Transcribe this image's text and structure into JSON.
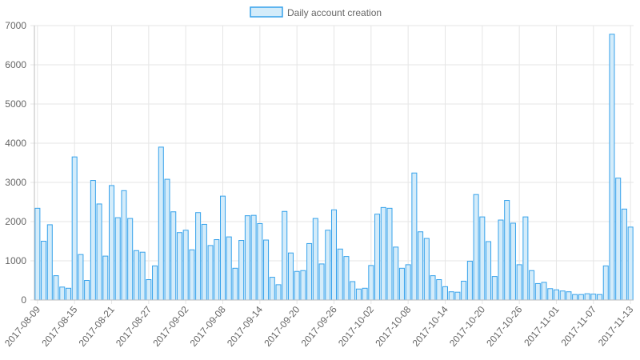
{
  "colors": {
    "bar_fill": "#d4ecfa",
    "bar_stroke": "#36a2eb",
    "grid": "#e5e5e5",
    "axis": "#bdbdbd",
    "text": "#666666"
  },
  "chart_data": {
    "type": "bar",
    "title": "",
    "xlabel": "",
    "ylabel": "",
    "ylim": [
      0,
      7000
    ],
    "yticks": [
      0,
      1000,
      2000,
      3000,
      4000,
      5000,
      6000,
      7000
    ],
    "grid": true,
    "legend": "top-center",
    "x_tick_labels": [
      "2017-08-09",
      "2017-08-15",
      "2017-08-21",
      "2017-08-27",
      "2017-09-02",
      "2017-09-08",
      "2017-09-14",
      "2017-09-20",
      "2017-09-26",
      "2017-10-02",
      "2017-10-08",
      "2017-10-14",
      "2017-10-20",
      "2017-10-26",
      "2017-11-01",
      "2017-11-07",
      "2017-11-13"
    ],
    "categories": [
      "2017-08-09",
      "2017-08-10",
      "2017-08-11",
      "2017-08-12",
      "2017-08-13",
      "2017-08-14",
      "2017-08-15",
      "2017-08-16",
      "2017-08-17",
      "2017-08-18",
      "2017-08-19",
      "2017-08-20",
      "2017-08-21",
      "2017-08-22",
      "2017-08-23",
      "2017-08-24",
      "2017-08-25",
      "2017-08-26",
      "2017-08-27",
      "2017-08-28",
      "2017-08-29",
      "2017-08-30",
      "2017-08-31",
      "2017-09-01",
      "2017-09-02",
      "2017-09-03",
      "2017-09-04",
      "2017-09-05",
      "2017-09-06",
      "2017-09-07",
      "2017-09-08",
      "2017-09-09",
      "2017-09-10",
      "2017-09-11",
      "2017-09-12",
      "2017-09-13",
      "2017-09-14",
      "2017-09-15",
      "2017-09-16",
      "2017-09-17",
      "2017-09-18",
      "2017-09-19",
      "2017-09-20",
      "2017-09-21",
      "2017-09-22",
      "2017-09-23",
      "2017-09-24",
      "2017-09-25",
      "2017-09-26",
      "2017-09-27",
      "2017-09-28",
      "2017-09-29",
      "2017-09-30",
      "2017-10-01",
      "2017-10-02",
      "2017-10-03",
      "2017-10-04",
      "2017-10-05",
      "2017-10-06",
      "2017-10-07",
      "2017-10-08",
      "2017-10-09",
      "2017-10-10",
      "2017-10-11",
      "2017-10-12",
      "2017-10-13",
      "2017-10-14",
      "2017-10-15",
      "2017-10-16",
      "2017-10-17",
      "2017-10-18",
      "2017-10-19",
      "2017-10-20",
      "2017-10-21",
      "2017-10-22",
      "2017-10-23",
      "2017-10-24",
      "2017-10-25",
      "2017-10-26",
      "2017-10-27",
      "2017-10-28",
      "2017-10-29",
      "2017-10-30",
      "2017-10-31",
      "2017-11-01",
      "2017-11-02",
      "2017-11-03",
      "2017-11-04",
      "2017-11-05",
      "2017-11-06",
      "2017-11-07",
      "2017-11-08",
      "2017-11-09",
      "2017-11-10",
      "2017-11-11",
      "2017-11-12",
      "2017-11-13"
    ],
    "series": [
      {
        "name": "Daily account creation",
        "values": [
          2340,
          1500,
          1920,
          620,
          330,
          300,
          3650,
          1160,
          500,
          3050,
          2450,
          1120,
          2920,
          2100,
          2790,
          2080,
          1260,
          1220,
          520,
          870,
          3900,
          3080,
          2250,
          1720,
          1780,
          1280,
          2230,
          1930,
          1390,
          1540,
          2650,
          1610,
          810,
          1520,
          2150,
          2160,
          1950,
          1530,
          580,
          390,
          2260,
          1200,
          730,
          750,
          1440,
          2080,
          920,
          1780,
          2300,
          1300,
          1110,
          470,
          280,
          300,
          880,
          2190,
          2360,
          2340,
          1350,
          810,
          900,
          3240,
          1740,
          1570,
          620,
          520,
          340,
          210,
          200,
          480,
          990,
          2690,
          2120,
          1490,
          600,
          2040,
          2540,
          1960,
          900,
          2120,
          750,
          420,
          450,
          290,
          260,
          230,
          210,
          140,
          140,
          160,
          150,
          140,
          870,
          6780,
          3110,
          2320,
          1860
        ]
      }
    ]
  }
}
